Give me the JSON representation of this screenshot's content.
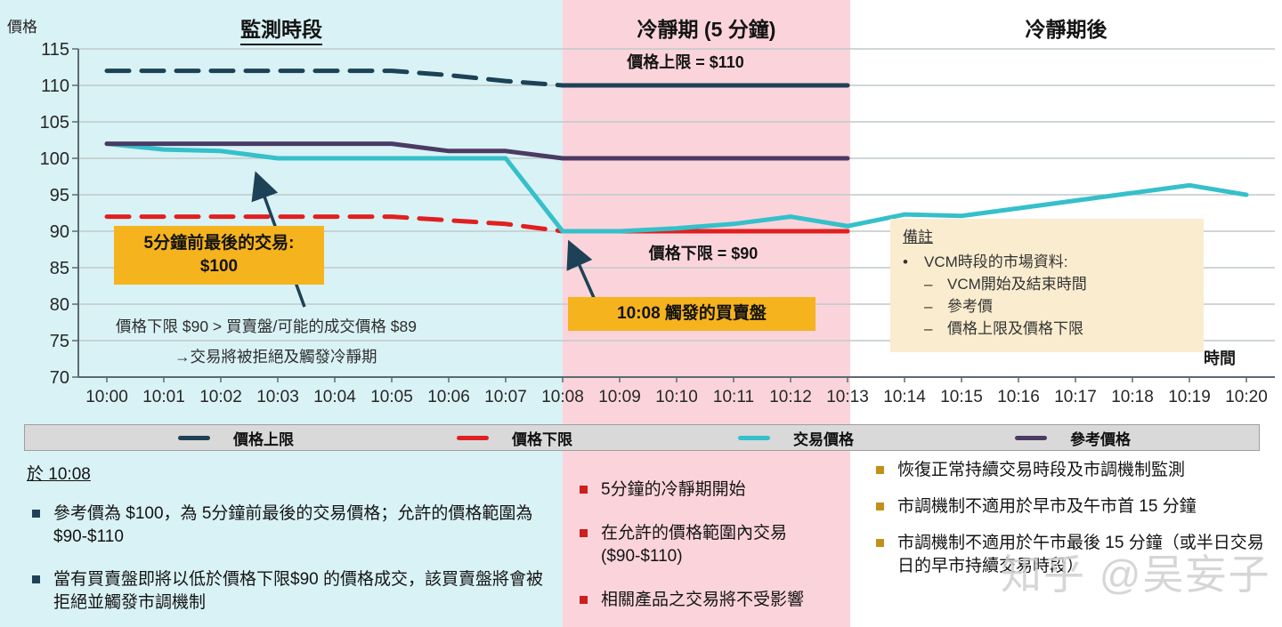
{
  "page": {
    "watermark": "知乎 @吴妄子"
  },
  "colors": {
    "zone_monitoring_bg": "#d9f2f5",
    "zone_cooling_bg": "#fbd4db",
    "zone_after_bg": "#ffffff",
    "upper_limit_line": "#1d4257",
    "lower_limit_line": "#e02020",
    "traded_price_line": "#35c0ca",
    "reference_price_line": "#4b3a63",
    "callout_bg": "#f5b31d",
    "note_box_bg": "#faeccf",
    "legend_bar_bg": "#d9d9d9"
  },
  "phases": [
    {
      "label": "監測時段"
    },
    {
      "label": "冷靜期 (5 分鐘)"
    },
    {
      "label": "冷靜期後"
    }
  ],
  "chart": {
    "y_axis_title": "價格",
    "x_axis_title": "時間",
    "annotations": {
      "upper_limit": "價格上限 = $110",
      "lower_limit": "價格下限 = $90",
      "callout_last_trade_line1": "5分鐘前最後的交易:",
      "callout_last_trade_line2": "$100",
      "note_reject_line1": "價格下限 $90 > 買賣盤/可能的成交價格 $89",
      "note_reject_line2": "→交易將被拒絕及觸發冷靜期",
      "callout_trigger": "10:08 觸發的買賣盤"
    },
    "note_box": {
      "title": "備註",
      "bullet_glyph": "•",
      "bullet": "VCM時段的市場資料:",
      "dash_glyph": "–",
      "items": [
        "VCM開始及結束時間",
        "參考價",
        "價格上限及價格下限"
      ]
    }
  },
  "chart_data": {
    "type": "line",
    "title": "",
    "xlabel": "時間",
    "ylabel": "價格",
    "ylim": [
      70,
      115
    ],
    "ytick_step": 5,
    "grid": "horizontal",
    "legend_position": "bottom-bar",
    "x_categories": [
      "10:00",
      "10:01",
      "10:02",
      "10:03",
      "10:04",
      "10:05",
      "10:06",
      "10:07",
      "10:08",
      "10:09",
      "10:10",
      "10:11",
      "10:12",
      "10:13",
      "10:14",
      "10:15",
      "10:16",
      "10:17",
      "10:18",
      "10:19",
      "10:20"
    ],
    "phases": [
      {
        "name": "監測時段",
        "x_range": [
          "10:00",
          "10:08"
        ],
        "bg": "#d9f2f5"
      },
      {
        "name": "冷靜期 (5 分鐘)",
        "x_range": [
          "10:08",
          "10:13"
        ],
        "bg": "#fbd4db"
      },
      {
        "name": "冷靜期後",
        "x_range": [
          "10:13",
          "10:20"
        ],
        "bg": "#ffffff"
      }
    ],
    "series": [
      {
        "name": "價格上限",
        "color": "#1d4257",
        "dash_before": "10:08",
        "x": [
          "10:00",
          "10:05",
          "10:06",
          "10:07",
          "10:08",
          "10:13"
        ],
        "values": [
          112,
          112,
          111.4,
          110.6,
          110,
          110
        ]
      },
      {
        "name": "價格下限",
        "color": "#e02020",
        "dash_before": "10:08",
        "x": [
          "10:00",
          "10:05",
          "10:06",
          "10:07",
          "10:08",
          "10:13"
        ],
        "values": [
          92,
          92,
          91.5,
          91,
          90,
          90
        ]
      },
      {
        "name": "交易價格",
        "color": "#35c0ca",
        "x": [
          "10:00",
          "10:01",
          "10:02",
          "10:03",
          "10:07",
          "10:08",
          "10:09",
          "10:10",
          "10:11",
          "10:12",
          "10:13",
          "10:14",
          "10:15",
          "10:19",
          "10:20"
        ],
        "values": [
          102,
          101.2,
          101,
          100,
          100,
          90,
          90,
          90.4,
          91,
          92,
          90.7,
          92.3,
          92.1,
          96.3,
          95
        ]
      },
      {
        "name": "參考價格",
        "color": "#4b3a63",
        "x": [
          "10:00",
          "10:05",
          "10:06",
          "10:07",
          "10:08",
          "10:13"
        ],
        "values": [
          102,
          102,
          101,
          101,
          100,
          100
        ]
      }
    ]
  },
  "legend": {
    "items": [
      {
        "label": "價格上限",
        "color": "#1d4257"
      },
      {
        "label": "價格下限",
        "color": "#e02020"
      },
      {
        "label": "交易價格",
        "color": "#35c0ca"
      },
      {
        "label": "參考價格",
        "color": "#4b3a63"
      }
    ]
  },
  "sections": {
    "monitoring": {
      "title": "於 10:08",
      "bullet_color": "#1f4257",
      "bullets": [
        "參考價為 $100，為 5分鐘前最後的交易價格；允許的價格範圍為 $90-$110",
        "當有買賣盤即將以低於價格下限$90 的價格成交，該買賣盤將會被拒絕並觸發市調機制"
      ]
    },
    "cooling": {
      "bullet_color": "#cc1f1f",
      "bullets": [
        "5分鐘的冷靜期開始",
        "在允許的價格範圍內交易 ($90-$110)",
        "相關產品之交易將不受影響"
      ]
    },
    "after": {
      "bullet_color": "#c39018",
      "bullets": [
        "恢復正常持續交易時段及市調機制監測",
        "市調機制不適用於早市及午市首 15 分鐘",
        "市調機制不適用於午市最後 15 分鐘（或半日交易日的早市持續交易時段）"
      ]
    }
  }
}
